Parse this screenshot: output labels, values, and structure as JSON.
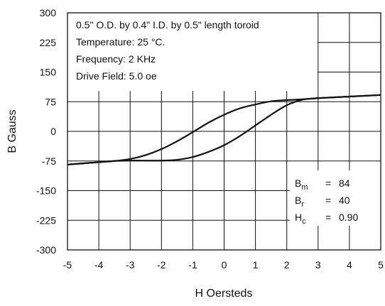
{
  "chart_data": {
    "type": "line",
    "title": "",
    "xlabel": "H Oersteds",
    "ylabel": "B Gauss",
    "xlim": [
      -5,
      5
    ],
    "ylim": [
      -300,
      300
    ],
    "x_ticks": [
      -5,
      -4,
      -3,
      -2,
      -1,
      0,
      1,
      2,
      3,
      4,
      5
    ],
    "y_ticks": [
      -300,
      -225,
      -150,
      -75,
      0,
      75,
      150,
      225,
      300
    ],
    "grid": true,
    "legend": "none",
    "annotations": [
      "0.5\" O.D. by 0.4\" I.D. by 0.5\" length toroid",
      "Temperature: 25 °C.",
      "Frequency: 2 KHz",
      "Drive Field: 5.0 oe"
    ],
    "parameters": [
      {
        "name": "B",
        "sub": "m",
        "value": "84"
      },
      {
        "name": "B",
        "sub": "r",
        "value": "40"
      },
      {
        "name": "H",
        "sub": "c",
        "value": "0.90"
      }
    ],
    "series": [
      {
        "x": [
          -5,
          -4,
          -3.5,
          -3,
          -2.5,
          -2,
          -1.5,
          -1,
          -0.5,
          0,
          0.5,
          1,
          1.5,
          2,
          2.5,
          3,
          3.5,
          4,
          5
        ],
        "y": [
          -84,
          -78,
          -75,
          -74,
          -74,
          -74,
          -72,
          -65,
          -52,
          -35,
          -12,
          15,
          42,
          66,
          80,
          84,
          86,
          88,
          92
        ]
      },
      {
        "x": [
          -5,
          -4,
          -3.5,
          -3,
          -2.5,
          -2,
          -1.5,
          -1,
          -0.5,
          0,
          0.5,
          1,
          1.5,
          2,
          2.5,
          3,
          4,
          5
        ],
        "y": [
          -84,
          -78,
          -75,
          -70,
          -60,
          -45,
          -25,
          -2,
          22,
          42,
          58,
          68,
          76,
          79,
          81,
          84,
          88,
          92
        ]
      }
    ]
  }
}
